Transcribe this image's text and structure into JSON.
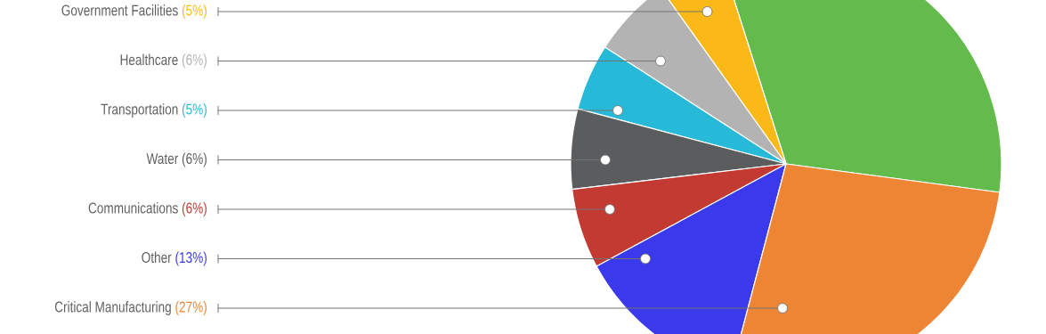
{
  "chart_data": {
    "type": "pie",
    "categories": [
      null,
      "Government Facilities",
      "Healthcare",
      "Transportation",
      "Water",
      "Communications",
      "Other",
      "Critical Manufacturing"
    ],
    "values": [
      32,
      5,
      6,
      5,
      6,
      6,
      13,
      27
    ],
    "colors": [
      "#62bb4a",
      "#fbb917",
      "#b3b3b3",
      "#27b9d8",
      "#5b5c5e",
      "#c23a31",
      "#3a3aec",
      "#ee8535"
    ],
    "value_labels": [
      null,
      "(5%)",
      "(6%)",
      "(5%)",
      "(6%)",
      "(6%)",
      "(13%)",
      "(27%)"
    ]
  }
}
